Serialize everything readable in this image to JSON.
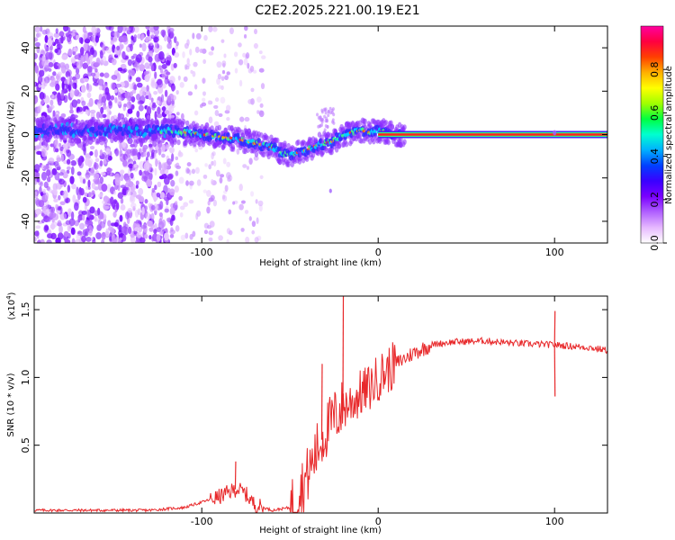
{
  "title": "C2E2.2025.221.00.19.E21",
  "chart_data": [
    {
      "type": "heatmap",
      "name": "spectrogram",
      "xlabel": "Height of straight line (km)",
      "ylabel": "Frequency (Hz)",
      "xlim": [
        -195,
        130
      ],
      "ylim": [
        -50,
        50
      ],
      "x_ticks": [
        "-100",
        "0",
        "100"
      ],
      "y_ticks": [
        "-40",
        "-20",
        "0",
        "20",
        "40"
      ],
      "colorbar": {
        "label": "Normalized spectral amplitude",
        "range": [
          0,
          1
        ],
        "ticks": [
          "0.0",
          "0.2",
          "0.4",
          "0.6",
          "0.8"
        ],
        "colors": [
          "#ffffff",
          "#e6b8ff",
          "#b060ff",
          "#7a00ff",
          "#3a00ff",
          "#0040ff",
          "#00b0ff",
          "#00ffd0",
          "#00ff40",
          "#a0ff00",
          "#ffff00",
          "#ffb000",
          "#ff4000",
          "#ff0040",
          "#ff00a0"
        ]
      },
      "ridge": {
        "x": [
          -120,
          -110,
          -100,
          -90,
          -80,
          -70,
          -60,
          -55,
          -50,
          -45,
          -40,
          -35,
          -30,
          -25,
          -20,
          -15,
          -10,
          -5,
          0,
          5,
          10,
          15,
          130
        ],
        "y": [
          2,
          1,
          0,
          -1,
          -2,
          -4,
          -6,
          -8,
          -10,
          -8,
          -7,
          -5,
          -4,
          -3,
          0,
          1,
          2,
          1,
          2,
          1,
          0,
          0,
          0
        ]
      }
    },
    {
      "type": "line",
      "name": "snr",
      "xlabel": "Height of straight line (km)",
      "ylabel": "SNR (10 * v/v)",
      "y_multiplier": "(x10",
      "y_multiplier_exp": "4",
      "xlim": [
        -195,
        130
      ],
      "ylim": [
        0,
        1.6
      ],
      "x_ticks": [
        "-100",
        "0",
        "100"
      ],
      "y_ticks": [
        "0.5",
        "1.0",
        "1.5"
      ],
      "color": "#e8282a",
      "profile": {
        "x": [
          -195,
          -130,
          -110,
          -100,
          -90,
          -80,
          -75,
          -70,
          -60,
          -50,
          -45,
          -40,
          -35,
          -30,
          -25,
          -20,
          -15,
          -10,
          -5,
          0,
          10,
          20,
          30,
          40,
          60,
          80,
          100,
          110,
          120,
          130
        ],
        "y": [
          0.02,
          0.02,
          0.04,
          0.08,
          0.12,
          0.18,
          0.14,
          0.06,
          0.02,
          0.04,
          0.15,
          0.28,
          0.45,
          0.6,
          0.7,
          0.78,
          0.82,
          0.88,
          0.92,
          1.0,
          1.1,
          1.18,
          1.24,
          1.26,
          1.27,
          1.25,
          1.24,
          1.23,
          1.22,
          1.2
        ]
      },
      "spikes": [
        {
          "x": -81,
          "y": 0.38
        },
        {
          "x": -20,
          "y": 1.6
        },
        {
          "x": -32,
          "y": 1.1
        },
        {
          "x": 100,
          "y": 1.49
        },
        {
          "x": 100,
          "y": 0.86
        }
      ]
    }
  ]
}
